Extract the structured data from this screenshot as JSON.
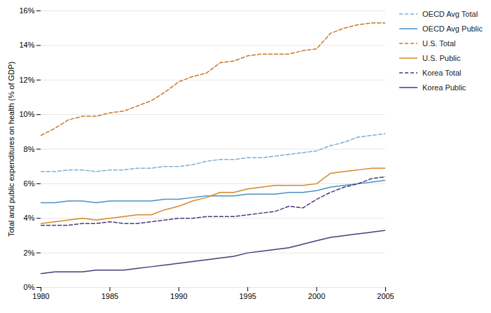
{
  "chart_data": {
    "type": "line",
    "x": [
      1980,
      1981,
      1982,
      1983,
      1984,
      1985,
      1986,
      1987,
      1988,
      1989,
      1990,
      1991,
      1992,
      1993,
      1994,
      1995,
      1996,
      1997,
      1998,
      1999,
      2000,
      2001,
      2002,
      2003,
      2004,
      2005
    ],
    "series": [
      {
        "name": "OECD Avg Total",
        "color": "#7bafd4",
        "line_style": "dashed",
        "values": [
          6.7,
          6.7,
          6.8,
          6.8,
          6.7,
          6.8,
          6.8,
          6.9,
          6.9,
          7.0,
          7.0,
          7.1,
          7.3,
          7.4,
          7.4,
          7.5,
          7.5,
          7.6,
          7.7,
          7.8,
          7.9,
          8.2,
          8.4,
          8.7,
          8.8,
          8.9
        ]
      },
      {
        "name": "OECD Avg Public",
        "color": "#4a90c4",
        "line_style": "solid",
        "values": [
          4.9,
          4.9,
          5.0,
          5.0,
          4.9,
          5.0,
          5.0,
          5.0,
          5.0,
          5.1,
          5.1,
          5.2,
          5.3,
          5.3,
          5.3,
          5.4,
          5.4,
          5.4,
          5.5,
          5.5,
          5.6,
          5.8,
          5.9,
          6.0,
          6.1,
          6.2
        ]
      },
      {
        "name": "U.S. Total",
        "color": "#c8782a",
        "line_style": "dashed",
        "values": [
          8.8,
          9.2,
          9.7,
          9.9,
          9.9,
          10.1,
          10.2,
          10.5,
          10.8,
          11.3,
          11.9,
          12.2,
          12.4,
          13.0,
          13.1,
          13.4,
          13.5,
          13.5,
          13.5,
          13.7,
          13.8,
          14.7,
          15.0,
          15.2,
          15.3,
          15.3
        ]
      },
      {
        "name": "U.S. Public",
        "color": "#d4882a",
        "line_style": "solid",
        "values": [
          3.7,
          3.8,
          3.9,
          4.0,
          3.9,
          4.0,
          4.1,
          4.2,
          4.2,
          4.5,
          4.7,
          5.0,
          5.2,
          5.5,
          5.5,
          5.7,
          5.8,
          5.9,
          5.9,
          5.9,
          6.0,
          6.6,
          6.7,
          6.8,
          6.9,
          6.9
        ]
      },
      {
        "name": "Korea Total",
        "color": "#4a3a7a",
        "line_style": "dashed",
        "values": [
          3.6,
          3.6,
          3.6,
          3.7,
          3.7,
          3.8,
          3.7,
          3.7,
          3.8,
          3.9,
          4.0,
          4.0,
          4.1,
          4.1,
          4.1,
          4.2,
          4.3,
          4.4,
          4.7,
          4.6,
          5.1,
          5.5,
          5.8,
          6.0,
          6.3,
          6.4
        ]
      },
      {
        "name": "Korea Public",
        "color": "#4a3a7a",
        "line_style": "solid",
        "values": [
          0.8,
          0.9,
          0.9,
          0.9,
          1.0,
          1.0,
          1.0,
          1.1,
          1.2,
          1.3,
          1.4,
          1.5,
          1.6,
          1.7,
          1.8,
          2.0,
          2.1,
          2.2,
          2.3,
          2.5,
          2.7,
          2.9,
          3.0,
          3.1,
          3.2,
          3.3
        ]
      }
    ],
    "ylabel": "Total and public expenditures on health (% of GDP)",
    "xlim": [
      1980,
      2005
    ],
    "ylim": [
      0,
      16
    ],
    "xticks": [
      1980,
      1985,
      1990,
      1995,
      2000,
      2005
    ],
    "yticks": [
      {
        "value": 0,
        "label": "0%"
      },
      {
        "value": 2,
        "label": "2%"
      },
      {
        "value": 4,
        "label": "4%"
      },
      {
        "value": 6,
        "label": "6%"
      },
      {
        "value": 8,
        "label": "8%"
      },
      {
        "value": 10,
        "label": "10%"
      },
      {
        "value": 12,
        "label": "12%"
      },
      {
        "value": 14,
        "label": "14%"
      },
      {
        "value": 16,
        "label": "16%"
      }
    ],
    "grid": true,
    "legend": "right"
  }
}
